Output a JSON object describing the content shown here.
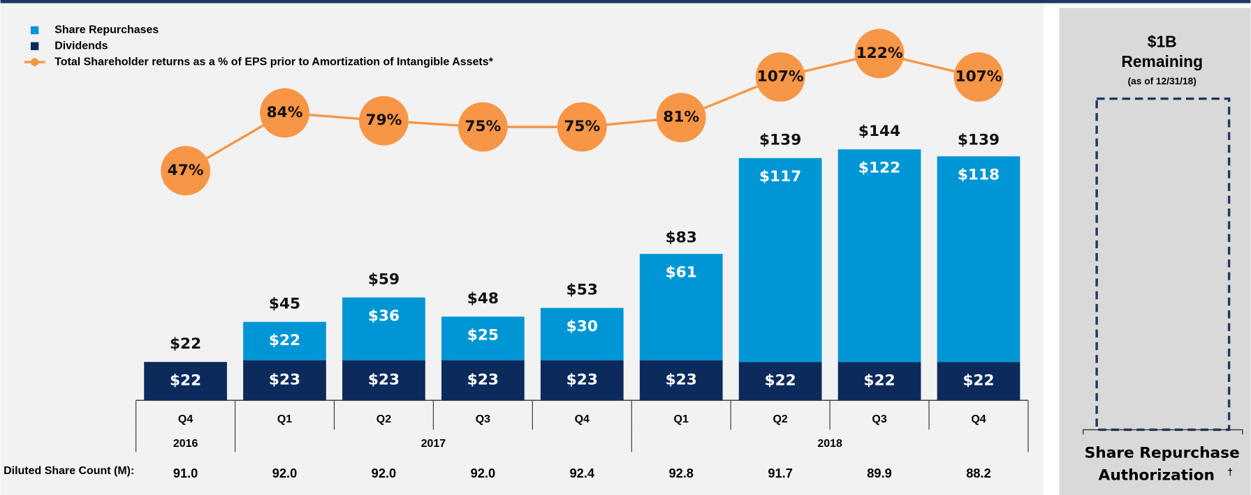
{
  "chart_data": {
    "type": "bar",
    "categories": [
      "Q4",
      "Q1",
      "Q2",
      "Q3",
      "Q4",
      "Q1",
      "Q2",
      "Q3",
      "Q4"
    ],
    "years": [
      {
        "label": "2016",
        "count": 1
      },
      {
        "label": "2017",
        "count": 4
      },
      {
        "label": "2018",
        "count": 4
      }
    ],
    "stacked": true,
    "ylim": [
      0,
      216
    ],
    "y2lim": [
      -100,
      141
    ],
    "series": [
      {
        "name": "Share Repurchases",
        "color": "#0096d6",
        "values": [
          null,
          22,
          36,
          25,
          30,
          61,
          117,
          122,
          118
        ],
        "value_labels": [
          null,
          "$22",
          "$36",
          "$25",
          "$30",
          "$61",
          "$117",
          "$122",
          "$118"
        ]
      },
      {
        "name": "Dividends",
        "color": "#0c2a5c",
        "values": [
          22,
          23,
          23,
          23,
          23,
          23,
          22,
          22,
          22
        ],
        "value_labels": [
          "$22",
          "$23",
          "$23",
          "$23",
          "$23",
          "$23",
          "$22",
          "$22",
          "$22"
        ]
      },
      {
        "name": "Total Shareholder returns as a % of EPS prior to Amortization of Intangible Assets*",
        "color": "#f79646",
        "axis": "y2",
        "type": "line",
        "values": [
          47,
          84,
          79,
          75,
          75,
          81,
          107,
          122,
          107
        ],
        "value_labels": [
          "47%",
          "84%",
          "79%",
          "75%",
          "75%",
          "81%",
          "107%",
          "122%",
          "107%"
        ]
      }
    ],
    "totals": [
      22,
      45,
      59,
      48,
      53,
      83,
      139,
      144,
      139
    ],
    "total_labels": [
      "$22",
      "$45",
      "$59",
      "$48",
      "$53",
      "$83",
      "$139",
      "$144",
      "$139"
    ],
    "share_count_label": "Diluted Share Count (M):",
    "share_counts": [
      "91.0",
      "92.0",
      "92.0",
      "92.0",
      "92.4",
      "92.8",
      "91.7",
      "89.9",
      "88.2"
    ]
  },
  "side_panel": {
    "amount": "$1B",
    "status": "Remaining",
    "as_of": "(as of 12/31/18)",
    "label": "Share Repurchase Authorization",
    "mark": "†"
  }
}
